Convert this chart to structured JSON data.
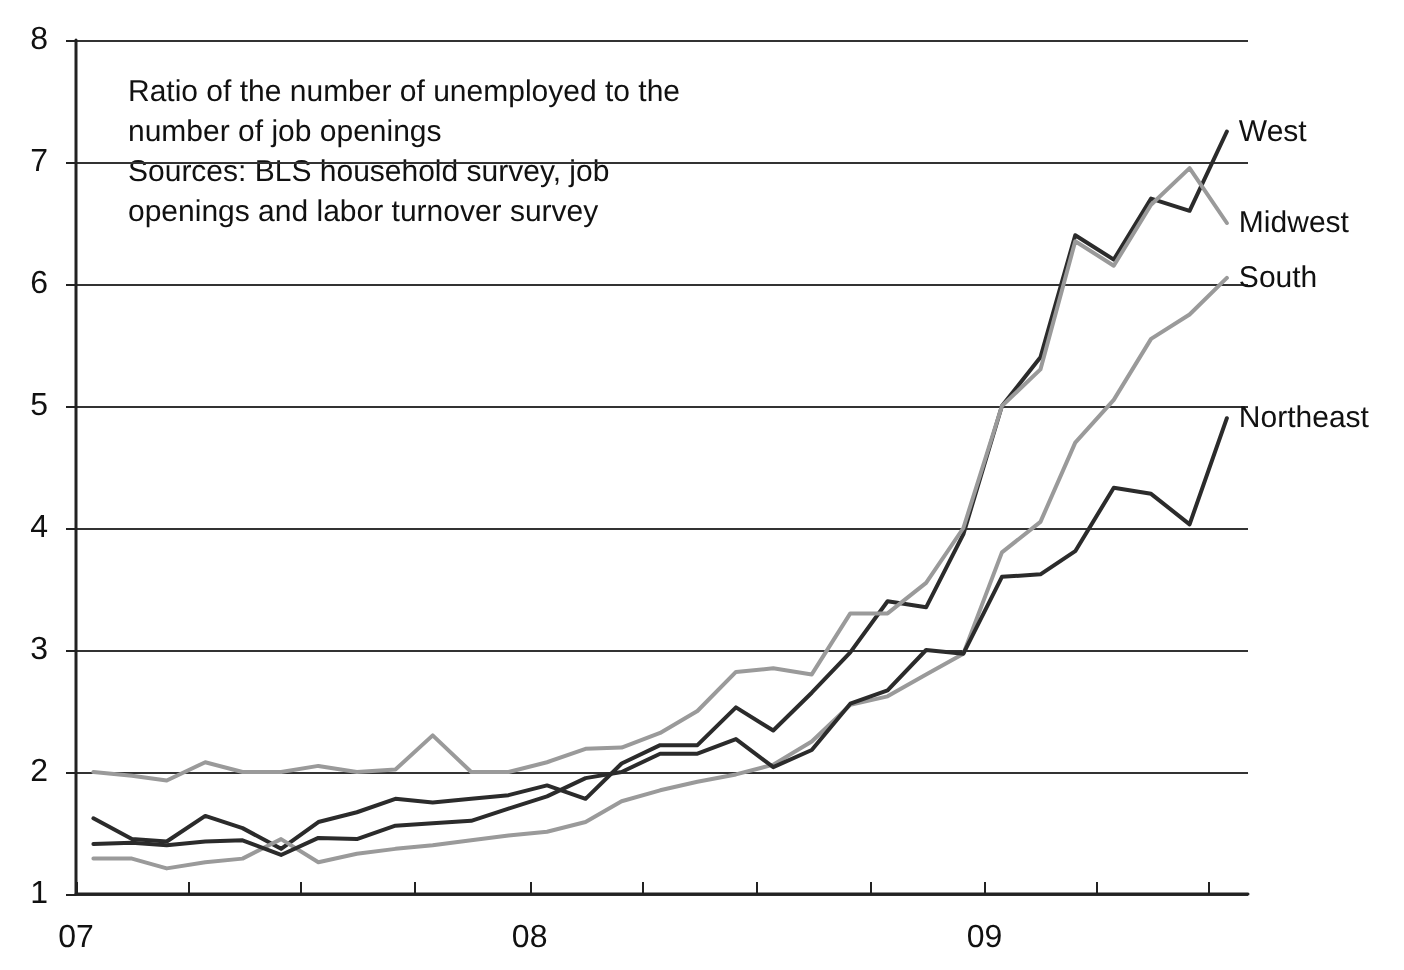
{
  "chart_data": {
    "type": "line",
    "annotations": [
      "Ratio of the number of unemployed to the number of job openings",
      "Sources: BLS household survey, job openings and labor turnover survey"
    ],
    "x": [
      "2007-01-15",
      "2007-02-15",
      "2007-03-15",
      "2007-04-15",
      "2007-05-15",
      "2007-06-15",
      "2007-07-15",
      "2007-08-15",
      "2007-09-15",
      "2007-10-15",
      "2007-11-15",
      "2007-12-15",
      "2008-01-15",
      "2008-02-15",
      "2008-03-15",
      "2008-04-15",
      "2008-05-15",
      "2008-06-15",
      "2008-07-15",
      "2008-08-15",
      "2008-09-15",
      "2008-10-15",
      "2008-11-15",
      "2008-12-15",
      "2009-01-15",
      "2009-02-15",
      "2009-03-15",
      "2009-04-15",
      "2009-05-15",
      "2009-06-15",
      "2009-07-15"
    ],
    "series": [
      {
        "name": "West",
        "color": "#2b2b2b",
        "values": [
          1.62,
          1.45,
          1.43,
          1.64,
          1.54,
          1.37,
          1.59,
          1.67,
          1.78,
          1.75,
          1.78,
          1.81,
          1.89,
          1.78,
          2.07,
          2.22,
          2.22,
          2.53,
          2.34,
          2.65,
          2.98,
          3.4,
          3.35,
          3.95,
          5.0,
          5.4,
          6.4,
          6.2,
          6.7,
          6.6,
          7.25
        ]
      },
      {
        "name": "Midwest",
        "color": "#9a9a9a",
        "values": [
          2.0,
          1.97,
          1.93,
          2.08,
          2.0,
          2.0,
          2.05,
          2.0,
          2.02,
          2.3,
          2.0,
          2.0,
          2.08,
          2.19,
          2.2,
          2.32,
          2.5,
          2.82,
          2.85,
          2.8,
          3.3,
          3.3,
          3.55,
          4.0,
          5.0,
          5.3,
          6.35,
          6.15,
          6.65,
          6.95,
          6.5
        ]
      },
      {
        "name": "South",
        "color": "#9a9a9a",
        "values": [
          1.29,
          1.29,
          1.21,
          1.26,
          1.29,
          1.45,
          1.26,
          1.33,
          1.37,
          1.4,
          1.44,
          1.48,
          1.51,
          1.59,
          1.76,
          1.85,
          1.92,
          1.98,
          2.06,
          2.25,
          2.55,
          2.62,
          2.8,
          2.97,
          3.8,
          4.05,
          4.7,
          5.05,
          5.55,
          5.75,
          6.05
        ]
      },
      {
        "name": "Northeast",
        "color": "#2b2b2b",
        "values": [
          1.41,
          1.42,
          1.4,
          1.43,
          1.44,
          1.32,
          1.46,
          1.45,
          1.56,
          1.58,
          1.6,
          1.7,
          1.8,
          1.95,
          2.0,
          2.15,
          2.15,
          2.27,
          2.04,
          2.18,
          2.56,
          2.67,
          3.0,
          2.97,
          3.6,
          3.62,
          3.81,
          4.33,
          4.28,
          4.03,
          4.9
        ]
      }
    ],
    "xlim": [
      "2007-01-01",
      "2009-08-01"
    ],
    "xticks": [
      {
        "value": "2007-01-01",
        "label": "07"
      },
      {
        "value": "2007-04-01",
        "label": null
      },
      {
        "value": "2007-07-01",
        "label": null
      },
      {
        "value": "2007-10-01",
        "label": null
      },
      {
        "value": "2008-01-01",
        "label": "08"
      },
      {
        "value": "2008-04-01",
        "label": null
      },
      {
        "value": "2008-07-01",
        "label": null
      },
      {
        "value": "2008-10-01",
        "label": null
      },
      {
        "value": "2009-01-01",
        "label": "09"
      },
      {
        "value": "2009-04-01",
        "label": null
      },
      {
        "value": "2009-07-01",
        "label": null
      }
    ],
    "ylim": [
      1,
      8
    ],
    "yticks": [
      1,
      2,
      3,
      4,
      5,
      6,
      7,
      8
    ],
    "grid": "y",
    "legend": false,
    "marker": "none",
    "line_style": "solid"
  }
}
